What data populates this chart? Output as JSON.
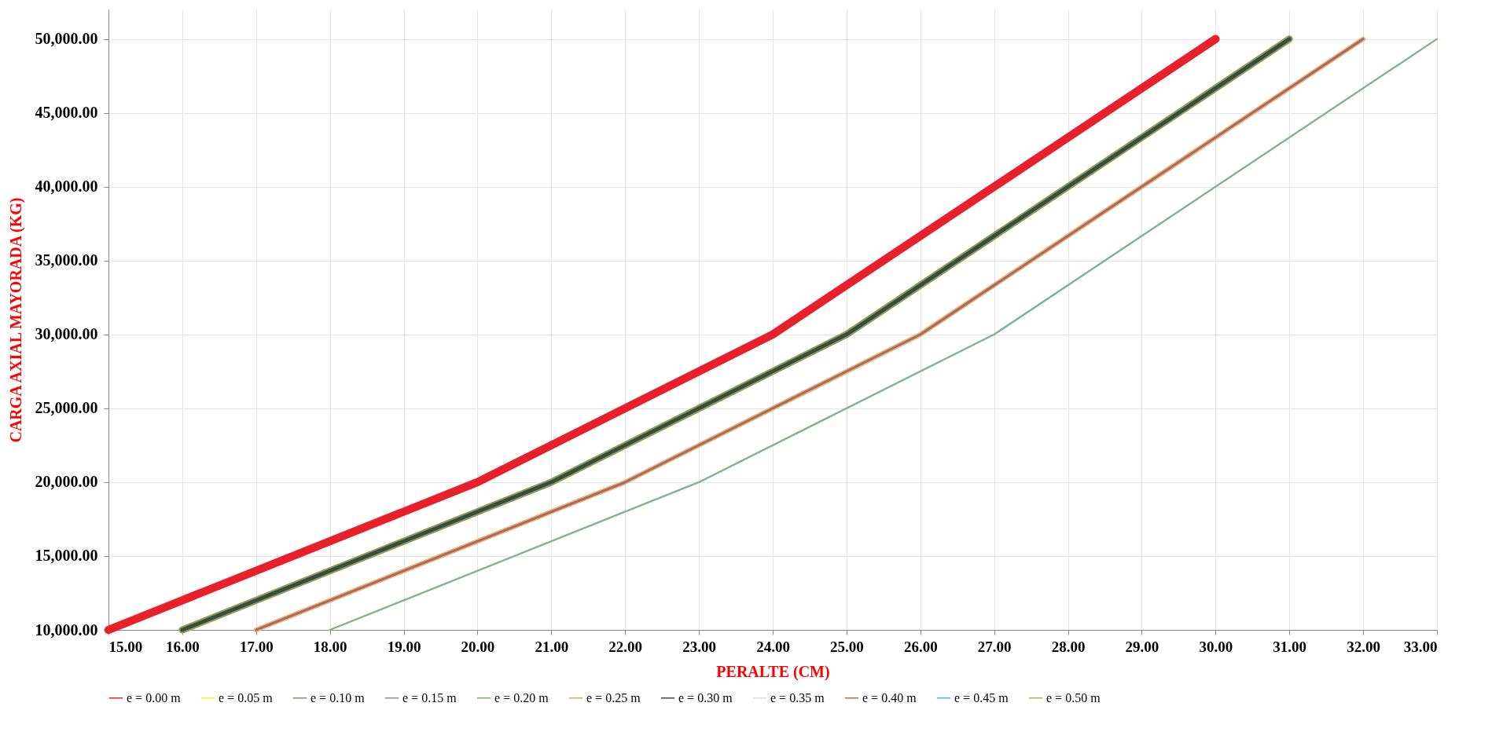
{
  "chart_data": {
    "type": "line",
    "xlabel": "PERALTE (CM)",
    "ylabel": "CARGA AXIAL MAYORADA (KG)",
    "xlim": [
      15,
      33
    ],
    "ylim": [
      10000,
      52000
    ],
    "xticks": [
      {
        "value": 15,
        "label": "15.00"
      },
      {
        "value": 16,
        "label": "16.00"
      },
      {
        "value": 17,
        "label": "17.00"
      },
      {
        "value": 18,
        "label": "18.00"
      },
      {
        "value": 19,
        "label": "19.00"
      },
      {
        "value": 20,
        "label": "20.00"
      },
      {
        "value": 21,
        "label": "21.00"
      },
      {
        "value": 22,
        "label": "22.00"
      },
      {
        "value": 23,
        "label": "23.00"
      },
      {
        "value": 24,
        "label": "24.00"
      },
      {
        "value": 25,
        "label": "25.00"
      },
      {
        "value": 26,
        "label": "26.00"
      },
      {
        "value": 27,
        "label": "27.00"
      },
      {
        "value": 28,
        "label": "28.00"
      },
      {
        "value": 29,
        "label": "29.00"
      },
      {
        "value": 30,
        "label": "30.00"
      },
      {
        "value": 31,
        "label": "31.00"
      },
      {
        "value": 32,
        "label": "32.00"
      },
      {
        "value": 33,
        "label": "33.00"
      }
    ],
    "yticks": [
      {
        "value": 10000,
        "label": "10,000.00"
      },
      {
        "value": 15000,
        "label": "15,000.00"
      },
      {
        "value": 20000,
        "label": "20,000.00"
      },
      {
        "value": 25000,
        "label": "25,000.00"
      },
      {
        "value": 30000,
        "label": "30,000.00"
      },
      {
        "value": 35000,
        "label": "35,000.00"
      },
      {
        "value": 40000,
        "label": "40,000.00"
      },
      {
        "value": 45000,
        "label": "45,000.00"
      },
      {
        "value": 50000,
        "label": "50,000.00"
      }
    ],
    "grid": true,
    "legend": "bottom",
    "series": [
      {
        "name": "e = 0.00 m",
        "color": "#e8202a",
        "x": [
          15,
          20,
          24,
          30
        ],
        "values": [
          10000,
          20000,
          30000,
          50000
        ]
      },
      {
        "name": "e = 0.05 m",
        "color": "#f5f032",
        "x": [
          16,
          21,
          25,
          31
        ],
        "values": [
          10000,
          20000,
          30000,
          50000
        ]
      },
      {
        "name": "e = 0.10 m",
        "color": "#7f8c6e",
        "x": [
          16,
          21,
          25,
          31
        ],
        "values": [
          10000,
          20000,
          30000,
          50000
        ]
      },
      {
        "name": "e = 0.15 m",
        "color": "#9a7fb0",
        "x": [
          16,
          21,
          25,
          31
        ],
        "values": [
          10000,
          20000,
          30000,
          50000
        ]
      },
      {
        "name": "e = 0.20 m",
        "color": "#7cb06a",
        "x": [
          16,
          21,
          25,
          31
        ],
        "values": [
          10000,
          20000,
          30000,
          50000
        ]
      },
      {
        "name": "e = 0.25 m",
        "color": "#f0a050",
        "x": [
          17,
          22,
          26,
          32
        ],
        "values": [
          10000,
          20000,
          30000,
          50000
        ]
      },
      {
        "name": "e = 0.30 m",
        "color": "#3f4a3c",
        "x": [
          16,
          21,
          25,
          31
        ],
        "values": [
          10000,
          20000,
          30000,
          50000
        ]
      },
      {
        "name": "e = 0.35 m",
        "color": "#dcdcdc",
        "x": [
          17,
          22,
          26,
          32
        ],
        "values": [
          10000,
          20000,
          30000,
          50000
        ]
      },
      {
        "name": "e = 0.40 m",
        "color": "#b06850",
        "x": [
          17,
          22,
          26,
          32
        ],
        "values": [
          10000,
          20000,
          30000,
          50000
        ]
      },
      {
        "name": "e = 0.45 m",
        "color": "#40b8e8",
        "x": [
          18,
          23,
          27,
          33
        ],
        "values": [
          10000,
          20000,
          30000,
          50000
        ]
      },
      {
        "name": "e = 0.50 m",
        "color": "#a8b050",
        "x": [
          18,
          23,
          27,
          33
        ],
        "values": [
          10000,
          20000,
          30000,
          50000
        ]
      }
    ]
  }
}
